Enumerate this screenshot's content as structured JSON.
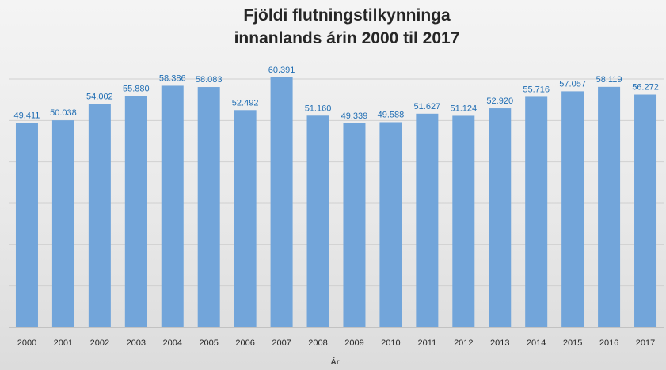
{
  "chart_data": {
    "type": "bar",
    "title_lines": [
      "Fjöldi flutningstilkynninga",
      "innanlands árin 2000 til 2017"
    ],
    "xlabel": "Ár",
    "ylabel": "",
    "categories": [
      "2000",
      "2001",
      "2002",
      "2003",
      "2004",
      "2005",
      "2006",
      "2007",
      "2008",
      "2009",
      "2010",
      "2011",
      "2012",
      "2013",
      "2014",
      "2015",
      "2016",
      "2017"
    ],
    "values": [
      49411,
      50038,
      54002,
      55880,
      58386,
      58083,
      52492,
      60391,
      51160,
      49339,
      49588,
      51627,
      51124,
      52920,
      55716,
      57057,
      58119,
      56272
    ],
    "value_labels": [
      "49.411",
      "50.038",
      "54.002",
      "55.880",
      "58.386",
      "58.083",
      "52.492",
      "60.391",
      "51.160",
      "49.339",
      "49.588",
      "51.627",
      "51.124",
      "52.920",
      "55.716",
      "57.057",
      "58.119",
      "56.272"
    ],
    "ylim": [
      0,
      60000
    ],
    "y_gridline_step": 10000,
    "grid": true,
    "legend": "none",
    "bar_color": "#72a5da",
    "label_color": "#1f6db3"
  }
}
